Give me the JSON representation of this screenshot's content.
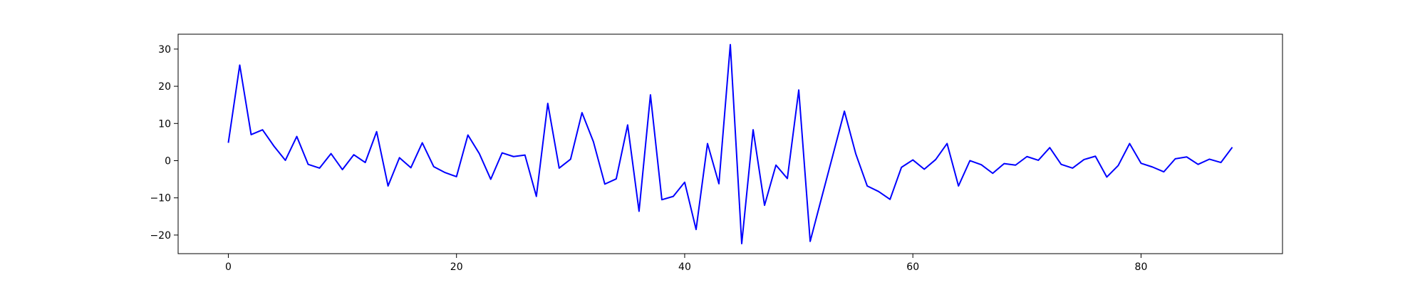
{
  "chart_data": {
    "type": "line",
    "title": "",
    "xlabel": "",
    "ylabel": "",
    "xlim": [
      -4.4,
      92.4
    ],
    "ylim": [
      -25,
      34
    ],
    "xticks": [
      0,
      20,
      40,
      60,
      80
    ],
    "yticks": [
      -20,
      -10,
      0,
      10,
      20,
      30
    ],
    "xtick_labels": [
      "0",
      "20",
      "40",
      "60",
      "80"
    ],
    "ytick_labels": [
      "−20",
      "−10",
      "0",
      "10",
      "20",
      "30"
    ],
    "grid": false,
    "legend": "none",
    "series": [
      {
        "color": "#0000ff",
        "x": [
          0,
          1,
          2,
          3,
          4,
          5,
          6,
          7,
          8,
          9,
          10,
          11,
          12,
          13,
          14,
          15,
          16,
          17,
          18,
          19,
          20,
          21,
          22,
          23,
          24,
          25,
          26,
          27,
          28,
          29,
          30,
          31,
          32,
          33,
          34,
          35,
          36,
          37,
          38,
          39,
          40,
          41,
          42,
          43,
          44,
          45,
          46,
          47,
          48,
          49,
          50,
          51,
          52,
          53,
          54,
          55,
          56,
          57,
          58,
          59,
          60,
          61,
          62,
          63,
          64,
          65,
          66,
          67,
          68,
          69,
          70,
          71,
          72,
          73,
          74,
          75,
          76,
          77,
          78,
          79,
          80,
          81,
          82,
          83,
          84,
          85,
          86,
          87,
          88
        ],
        "values": [
          4.8,
          25.7,
          7.0,
          8.3,
          3.9,
          0.1,
          6.5,
          -1.0,
          -2.0,
          1.9,
          -2.4,
          1.6,
          -0.5,
          7.8,
          -6.8,
          0.8,
          -1.9,
          4.8,
          -1.6,
          -3.2,
          -4.3,
          6.9,
          1.9,
          -5.0,
          2.1,
          1.1,
          1.5,
          -9.6,
          15.4,
          -2.0,
          0.4,
          12.9,
          5.1,
          -6.3,
          -4.9,
          9.6,
          -13.6,
          17.7,
          -10.5,
          -9.6,
          -5.8,
          -18.5,
          4.6,
          -6.2,
          31.2,
          -22.3,
          8.3,
          -12.0,
          -1.2,
          -4.8,
          19.0,
          -21.7,
          -10.0,
          1.6,
          13.3,
          1.8,
          -6.8,
          -8.3,
          -10.4,
          -1.8,
          0.2,
          -2.3,
          0.3,
          4.6,
          -6.8,
          0.0,
          -1.1,
          -3.4,
          -0.8,
          -1.2,
          1.1,
          0.1,
          3.5,
          -1.0,
          -2.0,
          0.3,
          1.2,
          -4.4,
          -1.3,
          4.6,
          -0.7,
          -1.7,
          -3.0,
          0.5,
          1.0,
          -1.0,
          0.4,
          -0.5,
          3.6
        ]
      }
    ]
  }
}
